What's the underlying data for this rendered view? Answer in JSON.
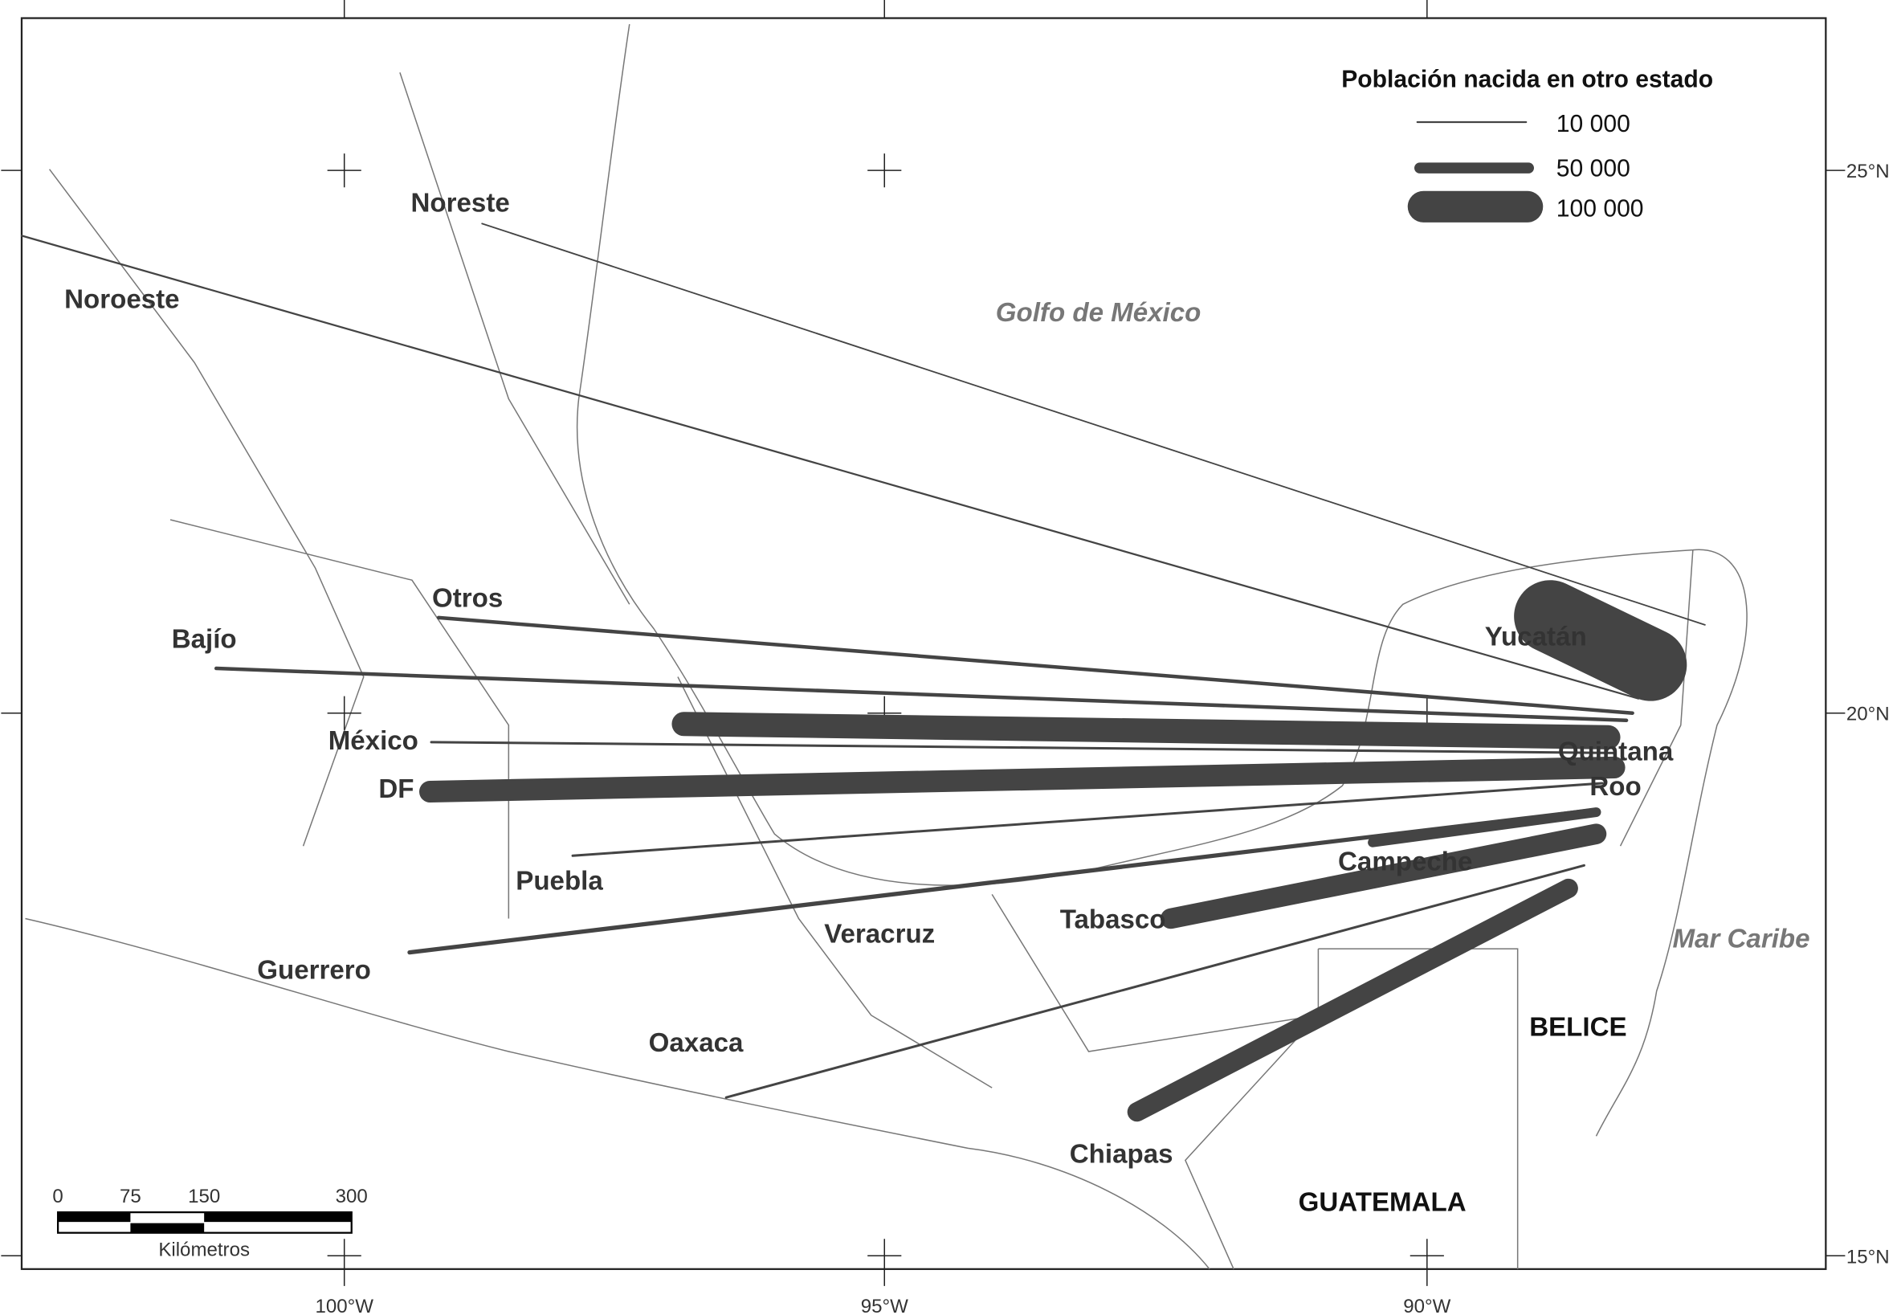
{
  "legend": {
    "title": "Población nacida en otro estado",
    "items": [
      "10 000",
      "50 000",
      "100 000"
    ]
  },
  "regions": [
    "Noreste",
    "Noroeste",
    "Otros",
    "Bajío",
    "México",
    "DF",
    "Puebla",
    "Guerrero",
    "Veracruz",
    "Oaxaca",
    "Tabasco",
    "Campeche",
    "Chiapas",
    "Yucatán",
    "Quintana",
    "Roo"
  ],
  "water": [
    "Golfo de México",
    "Mar Caribe"
  ],
  "countries": [
    "BELICE",
    "GUATEMALA"
  ],
  "longitude_labels": [
    "100°W",
    "95°W",
    "90°W"
  ],
  "latitude_labels": [
    "25°N",
    "20°N",
    "15°N"
  ],
  "scale_bar": {
    "ticks": [
      0,
      75,
      150,
      300
    ],
    "unit": "Kilómetros"
  }
}
